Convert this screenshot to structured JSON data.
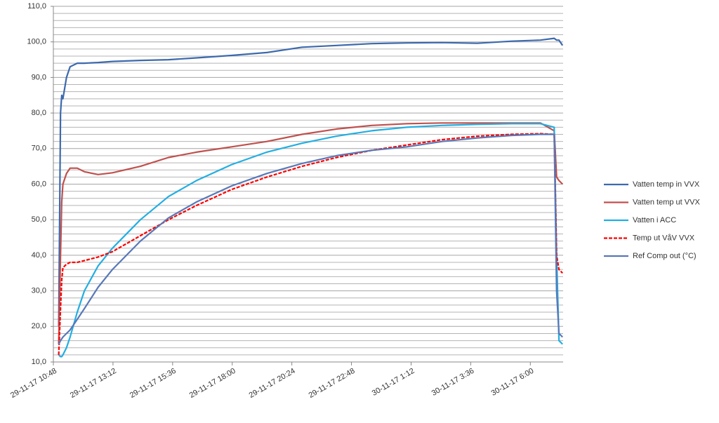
{
  "chart_data": {
    "type": "line",
    "x": [
      43068.459,
      43068.462,
      43068.464,
      43068.466,
      43068.472,
      43068.478,
      43068.49,
      43068.502,
      43068.525,
      43068.549,
      43068.596,
      43068.643,
      43068.69,
      43068.749,
      43068.808,
      43068.867,
      43068.925,
      43068.984,
      43069.043,
      43069.102,
      43069.161,
      43069.219,
      43069.267,
      43069.29,
      43069.294,
      43069.298,
      43069.304
    ],
    "series": [
      {
        "name": "Vatten temp in VVX",
        "color": "#3c69ad",
        "dashed": false,
        "values": [
          20,
          80,
          85,
          84,
          90,
          93,
          94,
          94,
          94.2,
          94.5,
          94.8,
          95,
          95.5,
          96.2,
          97,
          98.5,
          99,
          99.5,
          99.7,
          99.8,
          99.6,
          100.2,
          100.5,
          101,
          100.5,
          100.5,
          99
        ]
      },
      {
        "name": "Vatten temp ut VVX",
        "color": "#c0504d",
        "dashed": false,
        "values": [
          15,
          40,
          55,
          60,
          63,
          64.5,
          64.5,
          63.5,
          62.7,
          63.2,
          65,
          67.5,
          69,
          70.5,
          72,
          74,
          75.5,
          76.5,
          77,
          77.2,
          77.2,
          77.2,
          77.2,
          75,
          62,
          61,
          60
        ]
      },
      {
        "name": "Vatten i ACC",
        "color": "#22aee2",
        "dashed": false,
        "values": [
          12,
          11.5,
          11.5,
          12,
          14,
          17,
          24,
          30,
          37,
          42,
          50,
          56.5,
          61,
          65.5,
          69,
          71.5,
          73.5,
          75,
          76,
          76.5,
          76.8,
          77,
          77,
          76,
          40,
          16,
          15
        ]
      },
      {
        "name": "Temp ut VåV VVX",
        "color": "#ff0000",
        "dashed": true,
        "values": [
          12,
          25,
          33,
          36.5,
          37.5,
          38,
          38,
          38.5,
          39.5,
          41,
          45.5,
          50,
          54,
          58.5,
          62,
          65,
          67.5,
          69.5,
          71,
          72.5,
          73.5,
          74,
          74.2,
          74,
          40,
          36,
          35
        ]
      },
      {
        "name": "Ref Comp out (°C)",
        "color": "#5878b8",
        "dashed": false,
        "values": [
          15,
          16,
          16.5,
          17,
          18,
          19,
          22,
          25,
          31,
          36,
          44,
          50.5,
          55,
          59.5,
          63,
          65.8,
          68,
          69.5,
          70.5,
          72,
          73,
          73.7,
          74,
          74,
          30,
          18,
          17
        ]
      }
    ],
    "xlim": [
      43068.45,
      43069.305
    ],
    "xticks": [
      {
        "value": 43068.45,
        "label": "29-11-17 10:48"
      },
      {
        "value": 43068.55,
        "label": "29-11-17 13:12"
      },
      {
        "value": 43068.65,
        "label": "29-11-17 15:36"
      },
      {
        "value": 43068.75,
        "label": "29-11-17 18:00"
      },
      {
        "value": 43068.85,
        "label": "29-11-17 20:24"
      },
      {
        "value": 43068.95,
        "label": "29-11-17 22:48"
      },
      {
        "value": 43069.05,
        "label": "30-11-17 1:12"
      },
      {
        "value": 43069.15,
        "label": "30-11-17 3:36"
      },
      {
        "value": 43069.25,
        "label": "30-11-17 6:00"
      }
    ],
    "ylim": [
      10,
      110
    ],
    "yticks": [
      {
        "value": 10,
        "label": "10,0"
      },
      {
        "value": 20,
        "label": "20,0"
      },
      {
        "value": 30,
        "label": "30,0"
      },
      {
        "value": 40,
        "label": "40,0"
      },
      {
        "value": 50,
        "label": "50,0"
      },
      {
        "value": 60,
        "label": "60,0"
      },
      {
        "value": 70,
        "label": "70,0"
      },
      {
        "value": 80,
        "label": "80,0"
      },
      {
        "value": 90,
        "label": "90,0"
      },
      {
        "value": 100,
        "label": "100,0"
      },
      {
        "value": 110,
        "label": "110,0"
      }
    ],
    "grid": true,
    "minor_grid": true,
    "legend": "right"
  }
}
